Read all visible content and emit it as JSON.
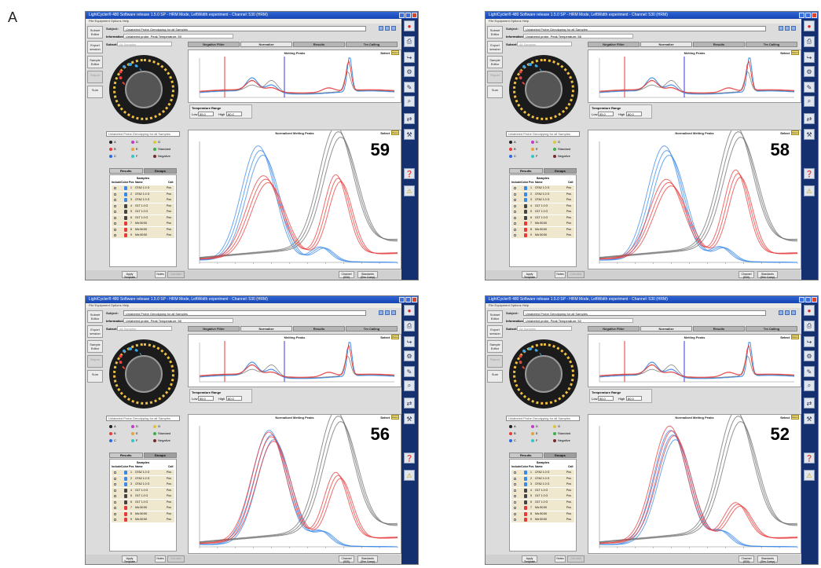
{
  "panel_label": "A",
  "app": {
    "menu": "File  Equipment  Options  Help",
    "subject_label": "Subject:",
    "information_label": "Information:",
    "selection_label": "Subset:",
    "tabs": [
      "Negative Filter",
      "Normalize",
      "Results",
      "Tm Calling"
    ],
    "left_nav": [
      "Subset Editor",
      "Export session",
      "Sample Editor",
      "Report",
      "Sum"
    ],
    "melting_peaks_title": "Melting Peaks",
    "normalized_title": "Normalized Melting Peaks",
    "select_label": "Select",
    "zoom_label": "Zoom",
    "temp_range_label": "Temperature Range",
    "low_label": "Low",
    "high_label": "High",
    "legend": [
      {
        "label": "A",
        "color": "#222222"
      },
      {
        "label": "B",
        "color": "#e83a3a"
      },
      {
        "label": "C",
        "color": "#2a6be8"
      },
      {
        "label": "D",
        "color": "#c53ac9"
      },
      {
        "label": "E",
        "color": "#e8a23a"
      },
      {
        "label": "F",
        "color": "#2fc7c7"
      },
      {
        "label": "G",
        "color": "#d8c93a"
      },
      {
        "label": "Standard",
        "color": "#3ab04a"
      },
      {
        "label": "Negative",
        "color": "#7a2a2a"
      }
    ],
    "results_tab": "Results",
    "groups_tab": "Groups",
    "samples_title": "Samples",
    "samples_header": [
      "Include",
      "Color",
      "Pos",
      "Name",
      "Call"
    ],
    "bottom_buttons": [
      "Apply Template",
      "Notes",
      "Calculate",
      "Channel (530)",
      "Standards (Sim Comp)"
    ],
    "icon_names": [
      "record-icon",
      "print-icon",
      "export-icon",
      "settings-icon",
      "analysis-icon",
      "search-icon",
      "compare-icon",
      "tools-icon",
      "help-icon",
      "warning-icon"
    ]
  },
  "panels": [
    {
      "title": "LightCycler® 480 Software release 1.5.0 SP - HRM Mode, LeftWidth experiment - Channel: 530 (HRM)",
      "subject": "Unlabeled Probe Genotyping for all Samples",
      "information": "Unlabeled probe, Peak Temperature: 59",
      "subset": "All Samples",
      "low": "55.0",
      "high": "80.0",
      "number": "59",
      "samples": [
        {
          "pos": "1",
          "name": "CFA2 1.0 G",
          "call": "Pos",
          "color": "#3a8ae8"
        },
        {
          "pos": "2",
          "name": "CFA2 1.0 G",
          "call": "Pos",
          "color": "#3a8ae8"
        },
        {
          "pos": "3",
          "name": "CFA2 1.0 G",
          "call": "Pos",
          "color": "#3a8ae8"
        },
        {
          "pos": "4",
          "name": "G1T 1.0 G",
          "call": "Pos",
          "color": "#444444"
        },
        {
          "pos": "5",
          "name": "G1T 1.0 G",
          "call": "Pos",
          "color": "#444444"
        },
        {
          "pos": "6",
          "name": "G1T 1.0 G",
          "call": "Pos",
          "color": "#444444"
        },
        {
          "pos": "7",
          "name": "Mix 50:50",
          "call": "Pos",
          "color": "#e83a3a"
        },
        {
          "pos": "8",
          "name": "Mix 50:50",
          "call": "Pos",
          "color": "#e83a3a"
        },
        {
          "pos": "9",
          "name": "Mix 50:50",
          "call": "Pos",
          "color": "#e83a3a"
        }
      ]
    },
    {
      "title": "LightCycler® 480 Software release 1.5.0 SP - HRM Mode, LeftWidth experiment - Channel: 530 (HRM)",
      "subject": "Unlabeled Probe Genotyping for all Samples",
      "information": "Unlabeled probe, Peak Temperature: 58",
      "subset": "All Samples",
      "low": "55.0",
      "high": "80.0",
      "number": "58",
      "samples": [
        {
          "pos": "1",
          "name": "CFA2 1.0 G",
          "call": "Pos",
          "color": "#3a8ae8"
        },
        {
          "pos": "2",
          "name": "CFA2 1.0 G",
          "call": "Pos",
          "color": "#3a8ae8"
        },
        {
          "pos": "3",
          "name": "CFA2 1.0 G",
          "call": "Pos",
          "color": "#3a8ae8"
        },
        {
          "pos": "4",
          "name": "G1T 1.0 G",
          "call": "Pos",
          "color": "#444444"
        },
        {
          "pos": "5",
          "name": "G1T 1.0 G",
          "call": "Pos",
          "color": "#444444"
        },
        {
          "pos": "6",
          "name": "G1T 1.0 G",
          "call": "Pos",
          "color": "#444444"
        },
        {
          "pos": "7",
          "name": "Mix 50:50",
          "call": "Pos",
          "color": "#e83a3a"
        },
        {
          "pos": "8",
          "name": "Mix 50:50",
          "call": "Pos",
          "color": "#e83a3a"
        },
        {
          "pos": "9",
          "name": "Mix 50:50",
          "call": "Pos",
          "color": "#e83a3a"
        }
      ]
    },
    {
      "title": "LightCycler® 480 Software release 1.5.0 SP - HRM Mode, LeftWidth experiment - Channel: 530 (HRM)",
      "subject": "Unlabeled Probe Genotyping for all Samples",
      "information": "Unlabeled probe, Peak Temperature: 56",
      "subset": "All Samples",
      "low": "55.0",
      "high": "80.0",
      "number": "56",
      "samples": [
        {
          "pos": "1",
          "name": "CFA2 1.0 G",
          "call": "Pos",
          "color": "#3a8ae8"
        },
        {
          "pos": "2",
          "name": "CFA2 1.0 G",
          "call": "Pos",
          "color": "#3a8ae8"
        },
        {
          "pos": "3",
          "name": "CFA2 1.0 G",
          "call": "Pos",
          "color": "#3a8ae8"
        },
        {
          "pos": "4",
          "name": "G1T 1.0 G",
          "call": "Pos",
          "color": "#444444"
        },
        {
          "pos": "5",
          "name": "G1T 1.0 G",
          "call": "Pos",
          "color": "#444444"
        },
        {
          "pos": "6",
          "name": "G1T 1.0 G",
          "call": "Pos",
          "color": "#444444"
        },
        {
          "pos": "7",
          "name": "Mix 50:50",
          "call": "Pos",
          "color": "#e83a3a"
        },
        {
          "pos": "8",
          "name": "Mix 50:50",
          "call": "Pos",
          "color": "#e83a3a"
        },
        {
          "pos": "9",
          "name": "Mix 50:50",
          "call": "Pos",
          "color": "#e83a3a"
        }
      ]
    },
    {
      "title": "LightCycler® 480 Software release 1.5.0 SP - HRM Mode, LeftWidth experiment - Channel: 530 (HRM)",
      "subject": "Unlabeled Probe Genotyping for all Samples",
      "information": "Unlabeled probe, Peak Temperature: 52",
      "subset": "All Samples",
      "low": "55.0",
      "high": "80.0",
      "number": "52",
      "samples": [
        {
          "pos": "1",
          "name": "CFA2 1.0 G",
          "call": "Pos",
          "color": "#3a8ae8"
        },
        {
          "pos": "2",
          "name": "CFA2 1.0 G",
          "call": "Pos",
          "color": "#3a8ae8"
        },
        {
          "pos": "3",
          "name": "CFA2 1.0 G",
          "call": "Pos",
          "color": "#3a8ae8"
        },
        {
          "pos": "4",
          "name": "G1T 1.0 G",
          "call": "Pos",
          "color": "#444444"
        },
        {
          "pos": "5",
          "name": "G1T 1.0 G",
          "call": "Pos",
          "color": "#444444"
        },
        {
          "pos": "6",
          "name": "G1T 1.0 G",
          "call": "Pos",
          "color": "#444444"
        },
        {
          "pos": "7",
          "name": "Mix 50:50",
          "call": "Pos",
          "color": "#e83a3a"
        },
        {
          "pos": "8",
          "name": "Mix 50:50",
          "call": "Pos",
          "color": "#e83a3a"
        },
        {
          "pos": "9",
          "name": "Mix 50:50",
          "call": "Pos",
          "color": "#e83a3a"
        }
      ]
    }
  ]
}
